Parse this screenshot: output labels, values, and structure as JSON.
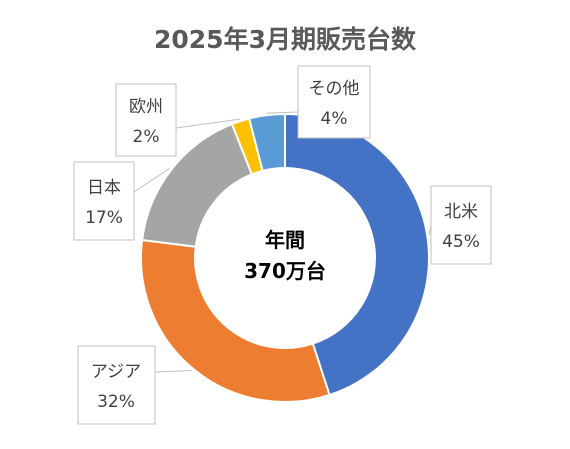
{
  "chart_data": {
    "type": "pie",
    "style": "donut",
    "title": "2025年3月期販売台数",
    "center_label": {
      "line1": "年間",
      "line2": "370万台"
    },
    "categories": [
      "北米",
      "アジア",
      "日本",
      "欧州",
      "その他"
    ],
    "values": [
      45,
      32,
      17,
      2,
      4
    ],
    "value_labels": [
      "45%",
      "32%",
      "17%",
      "2%",
      "4%"
    ],
    "colors": [
      "#4472C4",
      "#ED7D31",
      "#A5A5A5",
      "#FFC000",
      "#5B9BD5"
    ],
    "legend": "none"
  }
}
